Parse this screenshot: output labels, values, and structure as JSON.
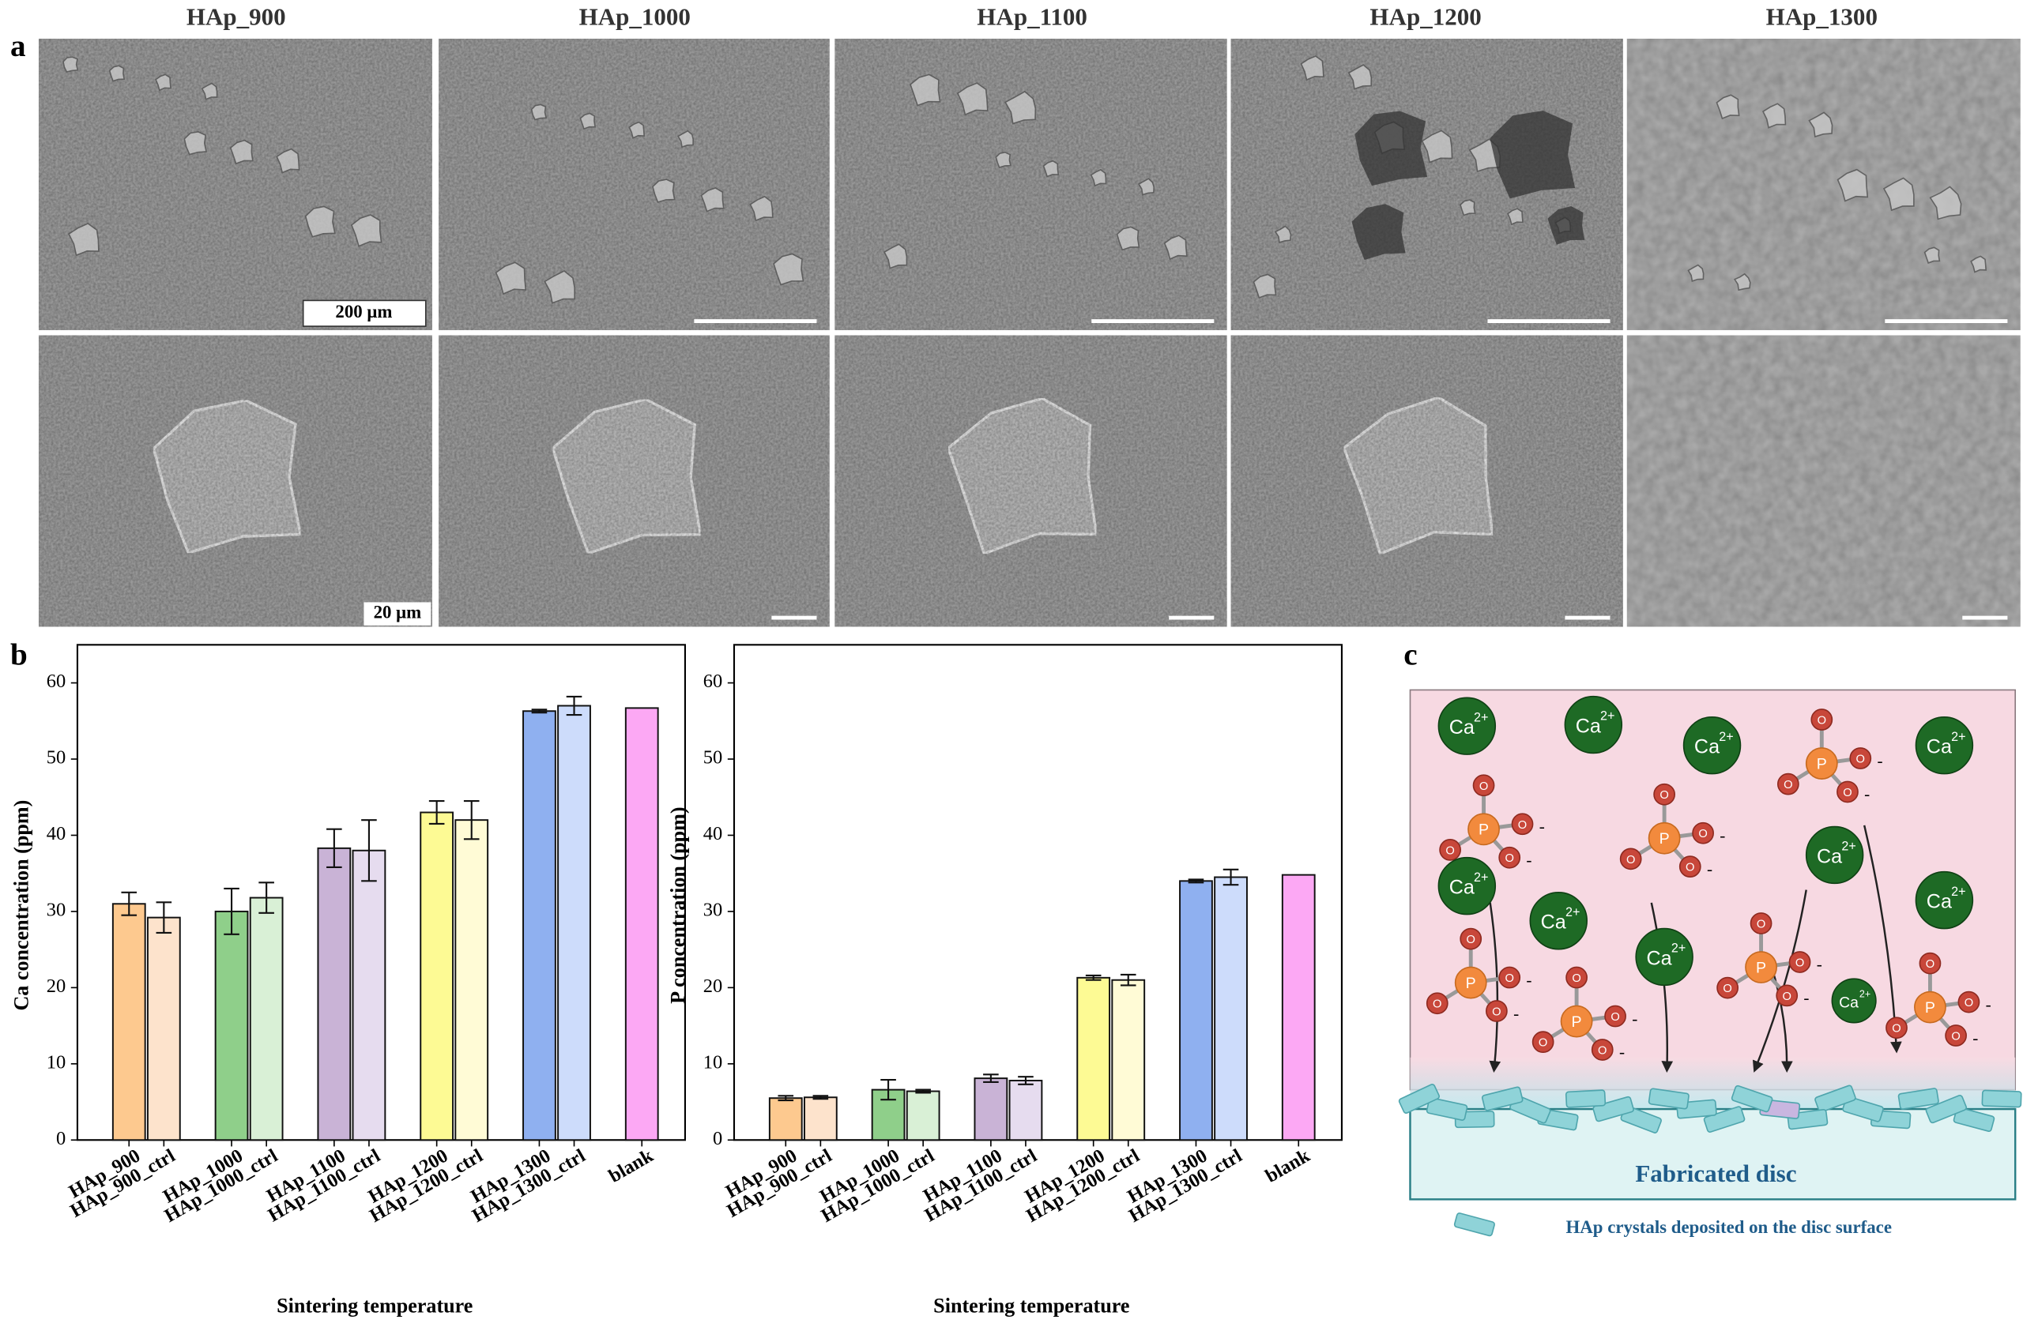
{
  "panel_labels": [
    "a",
    "b",
    "c"
  ],
  "sem": {
    "titles": [
      "HAp_900",
      "HAp_1000",
      "HAp_1100",
      "HAp_1200",
      "HAp_1300"
    ],
    "scale_labels": [
      "200 μm",
      "20 μm"
    ]
  },
  "chart_data": [
    {
      "type": "bar",
      "y_label": "Ca concentration (ppm)",
      "x_label": "Sintering temperature",
      "categories": [
        "HAp_900",
        "HAp_900_ctrl",
        "HAp_1000",
        "HAp_1000_ctrl",
        "HAp_1100",
        "HAp_1100_ctrl",
        "HAp_1200",
        "HAp_1200_ctrl",
        "HAp_1300",
        "HAp_1300_ctrl",
        "blank"
      ],
      "values": [
        31,
        29.2,
        30,
        31.8,
        38.3,
        38,
        43,
        42,
        56.3,
        57,
        56.7
      ],
      "errors": [
        1.5,
        2,
        3,
        2,
        2.5,
        4,
        1.5,
        2.5,
        0.2,
        1.2,
        null
      ],
      "colors": [
        "#fdc98f",
        "#fde3cc",
        "#8fcf8a",
        "#d9f0d6",
        "#c9b3d6",
        "#e6dcef",
        "#fdfa94",
        "#fffbd6",
        "#8fb0f0",
        "#cddcfb",
        "#fca8f4"
      ],
      "ylim": [
        0,
        65
      ],
      "yticks": [
        0,
        10,
        20,
        30,
        40,
        50,
        60
      ]
    },
    {
      "type": "bar",
      "y_label": "P concentration (ppm)",
      "x_label": "Sintering temperature",
      "categories": [
        "HAp_900",
        "HAp_900_ctrl",
        "HAp_1000",
        "HAp_1000_ctrl",
        "HAp_1100",
        "HAp_1100_ctrl",
        "HAp_1200",
        "HAp_1200_ctrl",
        "HAp_1300",
        "HAp_1300_ctrl",
        "blank"
      ],
      "values": [
        5.5,
        5.6,
        6.6,
        6.4,
        8.1,
        7.8,
        21.3,
        21,
        34,
        34.5,
        34.8
      ],
      "errors": [
        0.3,
        0.2,
        1.3,
        0.2,
        0.5,
        0.5,
        0.3,
        0.7,
        0.2,
        1,
        null
      ],
      "colors": [
        "#fdc98f",
        "#fde3cc",
        "#8fcf8a",
        "#d9f0d6",
        "#c9b3d6",
        "#e6dcef",
        "#fdfa94",
        "#fffbd6",
        "#8fb0f0",
        "#cddcfb",
        "#fca8f4"
      ],
      "ylim": [
        0,
        65
      ],
      "yticks": [
        0,
        10,
        20,
        30,
        40,
        50,
        60
      ]
    }
  ],
  "diagram": {
    "ion": "Ca",
    "charge": "2+",
    "p": "P",
    "o": "O",
    "minus": "-",
    "disc_label": "Fabricated disc",
    "legend": "HAp crystals deposited on the disc surface"
  }
}
